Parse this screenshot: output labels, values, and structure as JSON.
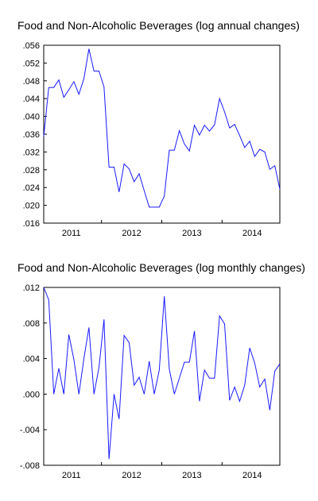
{
  "chart_data": [
    {
      "type": "line",
      "title": "Food and Non-Alcoholic Beverages (log annual changes)",
      "xlabel": "",
      "ylabel": "",
      "x_tick_labels": [
        "2011",
        "2012",
        "2013",
        "2014"
      ],
      "x_range": [
        "2011-01",
        "2014-12"
      ],
      "ylim": [
        0.016,
        0.056
      ],
      "y_ticks": [
        ".016",
        ".020",
        ".024",
        ".028",
        ".032",
        ".036",
        ".040",
        ".044",
        ".048",
        ".052",
        ".056"
      ],
      "grid": false,
      "line_color": "#1a1aff",
      "series": [
        {
          "x": [
            "2011-01",
            "2011-02",
            "2011-03",
            "2011-04",
            "2011-05",
            "2011-06",
            "2011-07",
            "2011-08",
            "2011-09",
            "2011-10",
            "2011-11",
            "2011-12",
            "2012-01",
            "2012-02",
            "2012-03",
            "2012-04",
            "2012-05",
            "2012-06",
            "2012-07",
            "2012-08",
            "2012-09",
            "2012-10",
            "2012-11",
            "2012-12",
            "2013-01",
            "2013-02",
            "2013-03",
            "2013-04",
            "2013-05",
            "2013-06",
            "2013-07",
            "2013-08",
            "2013-09",
            "2013-10",
            "2013-11",
            "2013-12",
            "2014-01",
            "2014-02",
            "2014-03",
            "2014-04",
            "2014-05",
            "2014-06",
            "2014-07",
            "2014-08",
            "2014-09",
            "2014-10",
            "2014-11",
            "2014-12"
          ],
          "values": [
            0.0355,
            0.0465,
            0.0465,
            0.0482,
            0.0443,
            0.046,
            0.0478,
            0.045,
            0.0485,
            0.0552,
            0.0502,
            0.0502,
            0.0466,
            0.0286,
            0.0286,
            0.023,
            0.0293,
            0.0282,
            0.0253,
            0.0271,
            0.0233,
            0.0196,
            0.0196,
            0.0196,
            0.0221,
            0.0324,
            0.0324,
            0.0368,
            0.0338,
            0.0322,
            0.038,
            0.0358,
            0.038,
            0.0367,
            0.0381,
            0.044,
            0.041,
            0.0374,
            0.0382,
            0.0357,
            0.033,
            0.0344,
            0.031,
            0.0326,
            0.032,
            0.0281,
            0.0289,
            0.0236
          ]
        }
      ]
    },
    {
      "type": "line",
      "title": "Food and Non-Alcoholic Beverages (log monthly changes)",
      "xlabel": "",
      "ylabel": "",
      "x_tick_labels": [
        "2011",
        "2012",
        "2013",
        "2014"
      ],
      "x_range": [
        "2011-01",
        "2014-12"
      ],
      "ylim": [
        -0.008,
        0.012
      ],
      "y_ticks": [
        "-.008",
        "-.004",
        ".000",
        ".004",
        ".008",
        ".012"
      ],
      "grid": false,
      "line_color": "#1a1aff",
      "series": [
        {
          "x": [
            "2011-01",
            "2011-02",
            "2011-03",
            "2011-04",
            "2011-05",
            "2011-06",
            "2011-07",
            "2011-08",
            "2011-09",
            "2011-10",
            "2011-11",
            "2011-12",
            "2012-01",
            "2012-02",
            "2012-03",
            "2012-04",
            "2012-05",
            "2012-06",
            "2012-07",
            "2012-08",
            "2012-09",
            "2012-10",
            "2012-11",
            "2012-12",
            "2013-01",
            "2013-02",
            "2013-03",
            "2013-04",
            "2013-05",
            "2013-06",
            "2013-07",
            "2013-08",
            "2013-09",
            "2013-10",
            "2013-11",
            "2013-12",
            "2014-01",
            "2014-02",
            "2014-03",
            "2014-04",
            "2014-05",
            "2014-06",
            "2014-07",
            "2014-08",
            "2014-09",
            "2014-10",
            "2014-11",
            "2014-12"
          ],
          "values": [
            0.012,
            0.0106,
            0.0,
            0.0029,
            0.0,
            0.0067,
            0.0039,
            0.0,
            0.004,
            0.0075,
            0.0,
            0.003,
            0.0084,
            -0.0073,
            0.0,
            -0.0028,
            0.0066,
            0.0058,
            0.001,
            0.0019,
            0.0,
            0.0037,
            0.0,
            0.0027,
            0.011,
            0.0028,
            0.0,
            0.0018,
            0.0036,
            0.0036,
            0.0071,
            -0.0008,
            0.0027,
            0.0018,
            0.0018,
            0.0088,
            0.0079,
            -0.0007,
            0.0008,
            -0.0008,
            0.001,
            0.0052,
            0.0035,
            0.0008,
            0.0017,
            -0.0018,
            0.0026,
            0.0034
          ]
        }
      ]
    }
  ]
}
